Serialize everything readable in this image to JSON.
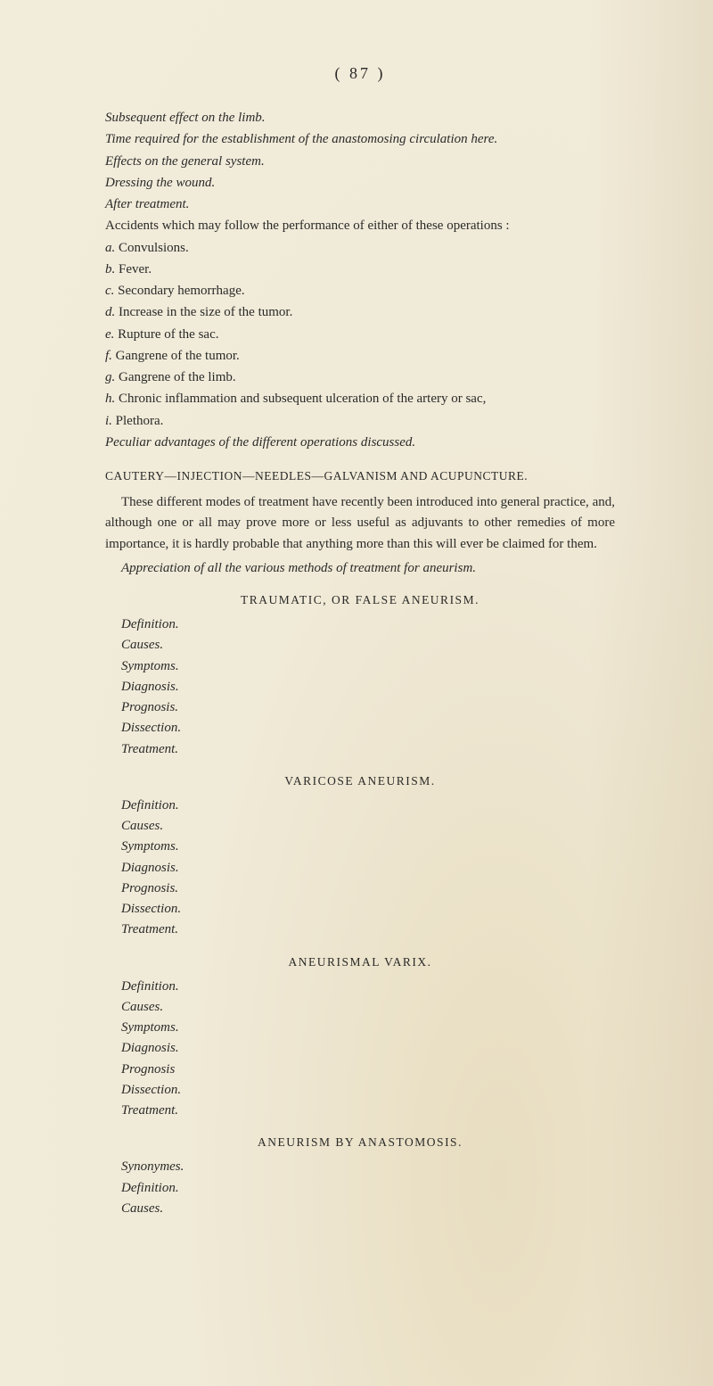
{
  "page_number": "( 87 )",
  "intro_lines": [
    {
      "text": "Subsequent effect on the limb.",
      "italic": true
    },
    {
      "text": "Time required for the establishment of the anastomosing circulation here.",
      "italic": true
    },
    {
      "text": "Effects on the general system.",
      "italic": true
    },
    {
      "text": "Dressing the wound.",
      "italic": true
    },
    {
      "text": "After treatment.",
      "italic": true
    },
    {
      "text": "Accidents which may follow the performance of either of these operations :",
      "italic": false
    }
  ],
  "accidents": [
    {
      "letter": "a.",
      "text": "Convulsions."
    },
    {
      "letter": "b.",
      "text": "Fever."
    },
    {
      "letter": "c.",
      "text": "Secondary hemorrhage."
    },
    {
      "letter": "d.",
      "text": "Increase in the size of the tumor."
    },
    {
      "letter": "e.",
      "text": "Rupture of the sac."
    },
    {
      "letter": "f.",
      "text": "Gangrene of the tumor."
    },
    {
      "letter": "g.",
      "text": "Gangrene of the limb."
    },
    {
      "letter": "h.",
      "text": "Chronic inflammation and subsequent ulceration of the artery or sac,"
    },
    {
      "letter": "i.",
      "text": "Plethora."
    }
  ],
  "peculiar": "Peculiar advantages of the different operations discussed.",
  "main_heading": "CAUTERY—INJECTION—NEEDLES—GALVANISM AND ACUPUNCTURE.",
  "main_paras": [
    "These different modes of treatment have recently been introduced into general practice, and, although one or all may prove more or less useful as adjuvants to other remedies of more importance, it is hardly probable that anything more than this will ever be claimed for them.",
    "Appreciation of all the various methods of treatment for aneurism."
  ],
  "sections": [
    {
      "heading": "TRAUMATIC, OR FALSE ANEURISM.",
      "items": [
        "Definition.",
        "Causes.",
        "Symptoms.",
        "Diagnosis.",
        "Prognosis.",
        "Dissection.",
        "Treatment."
      ]
    },
    {
      "heading": "VARICOSE ANEURISM.",
      "items": [
        "Definition.",
        "Causes.",
        "Symptoms.",
        "Diagnosis.",
        "Prognosis.",
        "Dissection.",
        "Treatment."
      ]
    },
    {
      "heading": "ANEURISMAL VARIX.",
      "items": [
        "Definition.",
        "Causes.",
        "Symptoms.",
        "Diagnosis.",
        "Prognosis",
        "Dissection.",
        "Treatment."
      ]
    },
    {
      "heading": "ANEURISM BY ANASTOMOSIS.",
      "items": [
        "Synonymes.",
        "Definition.",
        "Causes."
      ]
    }
  ]
}
